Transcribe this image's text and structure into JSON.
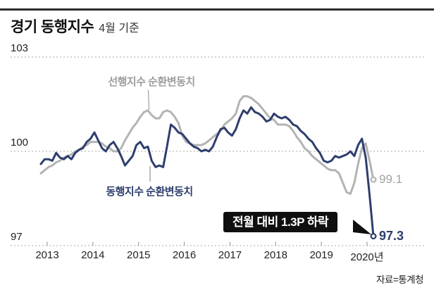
{
  "header": {
    "title": "경기 동행지수",
    "subtitle": "4월 기준"
  },
  "source_label": "자료=통계청",
  "annotation": {
    "text": "전월 대비 1.3P 하락"
  },
  "colors": {
    "leading_line": "#b3b3b3",
    "coincident_line": "#2e3e6d",
    "annotation_bg": "#0f0f0f",
    "annotation_text": "#ffffff",
    "grid": "#aaaaaa"
  },
  "chart_data": {
    "type": "line",
    "title": "경기 동행지수 (4월 기준)",
    "x_unit": "month",
    "x_range": [
      "2013-01",
      "2020-04"
    ],
    "x_tick_labels": [
      "2013",
      "2014",
      "2015",
      "2016",
      "2017",
      "2018",
      "2019",
      "2020년"
    ],
    "y_ticks": [
      103,
      100,
      97
    ],
    "ylim": [
      97,
      103
    ],
    "grid": "horizontal-dotted",
    "legend_position": "inline-labels",
    "series": [
      {
        "name": "선행지수 순환변동치",
        "color": "#b3b3b3",
        "end_label": "99.1",
        "end_value": 99.1,
        "values": [
          99.3,
          99.4,
          99.5,
          99.55,
          99.65,
          99.7,
          99.8,
          99.85,
          99.9,
          100.0,
          100.05,
          100.15,
          100.2,
          100.3,
          100.3,
          100.3,
          100.25,
          100.15,
          100.1,
          100.0,
          100.0,
          100.1,
          100.35,
          100.55,
          100.75,
          100.9,
          101.1,
          101.25,
          101.3,
          101.15,
          101.05,
          101.05,
          101.25,
          101.3,
          101.25,
          101.1,
          100.9,
          100.5,
          100.3,
          100.25,
          100.2,
          100.2,
          100.2,
          100.25,
          100.35,
          100.45,
          100.55,
          100.65,
          100.85,
          100.95,
          101.05,
          101.2,
          101.6,
          101.75,
          101.75,
          101.7,
          101.6,
          101.5,
          101.35,
          101.2,
          101.05,
          101.0,
          100.85,
          100.85,
          100.85,
          100.8,
          100.65,
          100.45,
          100.3,
          100.1,
          100.0,
          99.85,
          99.75,
          99.65,
          99.55,
          99.45,
          99.4,
          99.4,
          99.3,
          99.0,
          98.7,
          98.65,
          99.0,
          99.6,
          100.1,
          100.25,
          99.7,
          99.1
        ]
      },
      {
        "name": "동행지수 순환변동치",
        "color": "#2e3e6d",
        "end_label": "97.3",
        "end_value": 97.3,
        "values": [
          99.6,
          99.75,
          99.75,
          99.7,
          99.95,
          99.8,
          99.75,
          99.85,
          99.75,
          99.95,
          100.05,
          100.1,
          100.3,
          100.4,
          100.6,
          100.35,
          100.1,
          100.0,
          100.2,
          100.3,
          100.1,
          99.85,
          99.55,
          99.7,
          99.85,
          100.2,
          100.3,
          100.1,
          100.15,
          99.7,
          99.5,
          99.55,
          99.5,
          100.15,
          100.85,
          100.75,
          100.6,
          100.55,
          100.4,
          100.25,
          100.15,
          100.1,
          100.0,
          100.05,
          100.0,
          100.15,
          100.45,
          100.7,
          100.75,
          100.6,
          100.5,
          100.7,
          101.05,
          101.3,
          101.2,
          101.4,
          101.25,
          101.2,
          101.1,
          100.95,
          101.0,
          101.2,
          101.1,
          101.05,
          101.1,
          101.0,
          100.85,
          100.8,
          100.65,
          100.55,
          100.4,
          100.3,
          100.1,
          99.95,
          99.7,
          99.65,
          99.7,
          99.85,
          99.8,
          99.85,
          99.9,
          100.0,
          99.85,
          100.2,
          100.4,
          99.8,
          98.6,
          97.3
        ]
      }
    ]
  }
}
